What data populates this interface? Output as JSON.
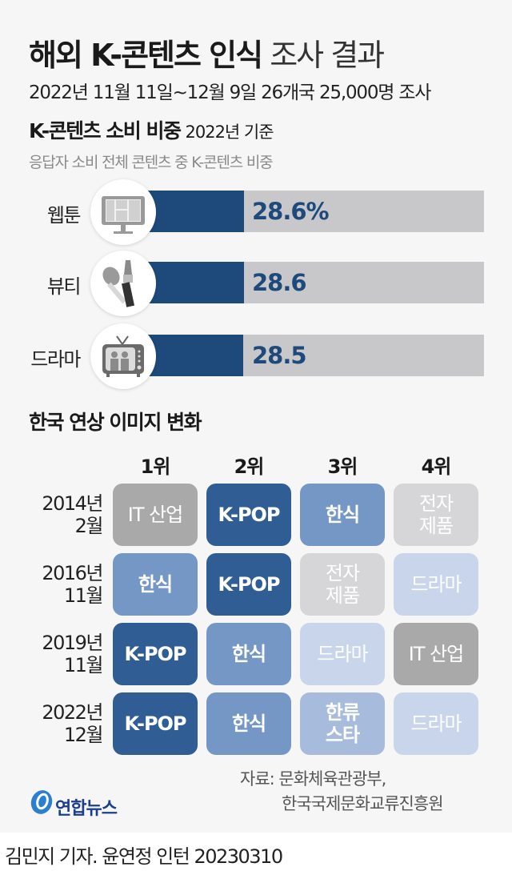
{
  "header": {
    "title_bold": "해외 K-콘텐츠 인식",
    "title_light": "조사 결과",
    "subtitle": "2022년 11월 11일~12월 9일 26개국 25,000명 조사"
  },
  "section1": {
    "title": "K-콘텐츠 소비 비중",
    "base": "2022년 기준",
    "note": "응답자 소비 전체 콘텐츠 중 K-콘텐츠 비중"
  },
  "section2": {
    "title": "한국 연상 이미지 변화",
    "ranks": [
      "1위",
      "2위",
      "3위",
      "4위"
    ],
    "rows": [
      {
        "period": "2014년\n2월",
        "year": "2014년",
        "month": "2월",
        "cells": [
          {
            "label": "IT 산업",
            "color": "#a9a9a9",
            "bold": false
          },
          {
            "label": "K-POP",
            "color": "#2f5d94",
            "bold": true
          },
          {
            "label": "한식",
            "color": "#7497c6",
            "bold": true
          },
          {
            "label": "전자\n제품",
            "color": "#d6d6d8",
            "bold": false
          }
        ]
      },
      {
        "period": "2016년\n11월",
        "year": "2016년",
        "month": "11월",
        "cells": [
          {
            "label": "한식",
            "color": "#7497c6",
            "bold": true
          },
          {
            "label": "K-POP",
            "color": "#2f5d94",
            "bold": true
          },
          {
            "label": "전자\n제품",
            "color": "#d6d6d8",
            "bold": false
          },
          {
            "label": "드라마",
            "color": "#c8d5ea",
            "bold": false
          }
        ]
      },
      {
        "period": "2019년\n11월",
        "year": "2019년",
        "month": "11월",
        "cells": [
          {
            "label": "K-POP",
            "color": "#2f5d94",
            "bold": true
          },
          {
            "label": "한식",
            "color": "#7497c6",
            "bold": true
          },
          {
            "label": "드라마",
            "color": "#c8d5ea",
            "bold": false
          },
          {
            "label": "IT 산업",
            "color": "#a9a9a9",
            "bold": false
          }
        ]
      },
      {
        "period": "2022년\n12월",
        "year": "2022년",
        "month": "12월",
        "cells": [
          {
            "label": "K-POP",
            "color": "#2f5d94",
            "bold": true
          },
          {
            "label": "한식",
            "color": "#7497c6",
            "bold": true
          },
          {
            "label": "한류\n스타",
            "color": "#a7bcdc",
            "bold": true
          },
          {
            "label": "드라마",
            "color": "#c8d5ea",
            "bold": false
          }
        ]
      }
    ]
  },
  "footer": {
    "source_line1": "자료: 문화체육관광부,",
    "source_line2": "한국국제문화교류진흥원",
    "logo_text": "연합뉴스",
    "credit": "김민지 기자. 윤연정 인턴  20230310"
  },
  "colors": {
    "bar_fill": "#1d4a7a",
    "bar_track": "#c8c8ca",
    "background": "#f6f6f6"
  },
  "chart_data": [
    {
      "type": "bar",
      "title": "K-콘텐츠 소비 비중",
      "subtitle": "2022년 기준 · 응답자 소비 전체 콘텐츠 중 K-콘텐츠 비중",
      "categories": [
        "웹툰",
        "뷰티",
        "드라마"
      ],
      "values": [
        28.6,
        28.6,
        28.5
      ],
      "value_labels": [
        "28.6%",
        "28.6",
        "28.5"
      ],
      "unit": "%",
      "orientation": "horizontal",
      "xlabel": "",
      "ylabel": "",
      "icons": [
        "monitor-icon",
        "makeup-brush-icon",
        "tv-icon"
      ],
      "grid": false
    },
    {
      "type": "table",
      "title": "한국 연상 이미지 변화",
      "columns": [
        "1위",
        "2위",
        "3위",
        "4위"
      ],
      "rows": [
        {
          "period": "2014년 2월",
          "values": [
            "IT 산업",
            "K-POP",
            "한식",
            "전자제품"
          ]
        },
        {
          "period": "2016년 11월",
          "values": [
            "한식",
            "K-POP",
            "전자제품",
            "드라마"
          ]
        },
        {
          "period": "2019년 11월",
          "values": [
            "K-POP",
            "한식",
            "드라마",
            "IT 산업"
          ]
        },
        {
          "period": "2022년 12월",
          "values": [
            "K-POP",
            "한식",
            "한류스타",
            "드라마"
          ]
        }
      ]
    }
  ]
}
